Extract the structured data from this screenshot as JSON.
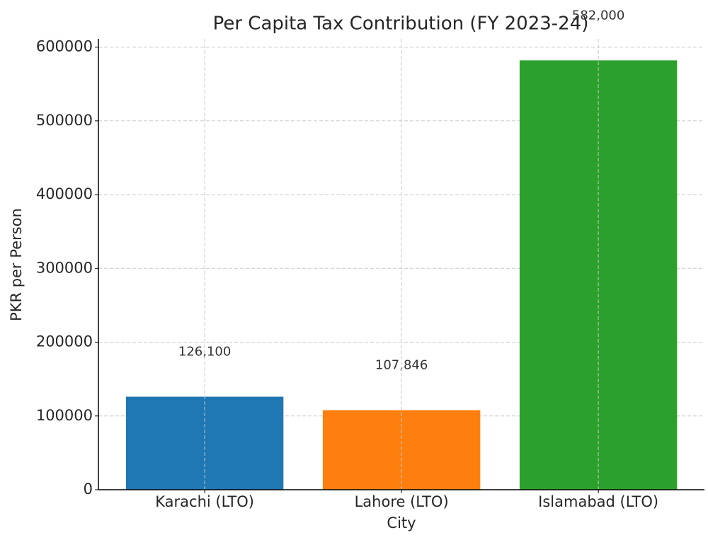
{
  "chart_data": {
    "type": "bar",
    "title": "Per Capita Tax Contribution (FY 2023-24)",
    "x_label": "City",
    "y_label": "PKR per Person",
    "categories": [
      "Karachi (LTO)",
      "Lahore (LTO)",
      "Islamabad (LTO)"
    ],
    "values": [
      126100,
      107846,
      582000
    ],
    "value_labels": [
      "126,100",
      "107,846",
      "582,000"
    ],
    "colors": [
      "#1f77b4",
      "#ff7f0e",
      "#2ca02c"
    ],
    "ylim": [
      0,
      611100
    ],
    "yticks": [
      0,
      100000,
      200000,
      300000,
      400000,
      500000,
      600000
    ],
    "grid": true
  }
}
